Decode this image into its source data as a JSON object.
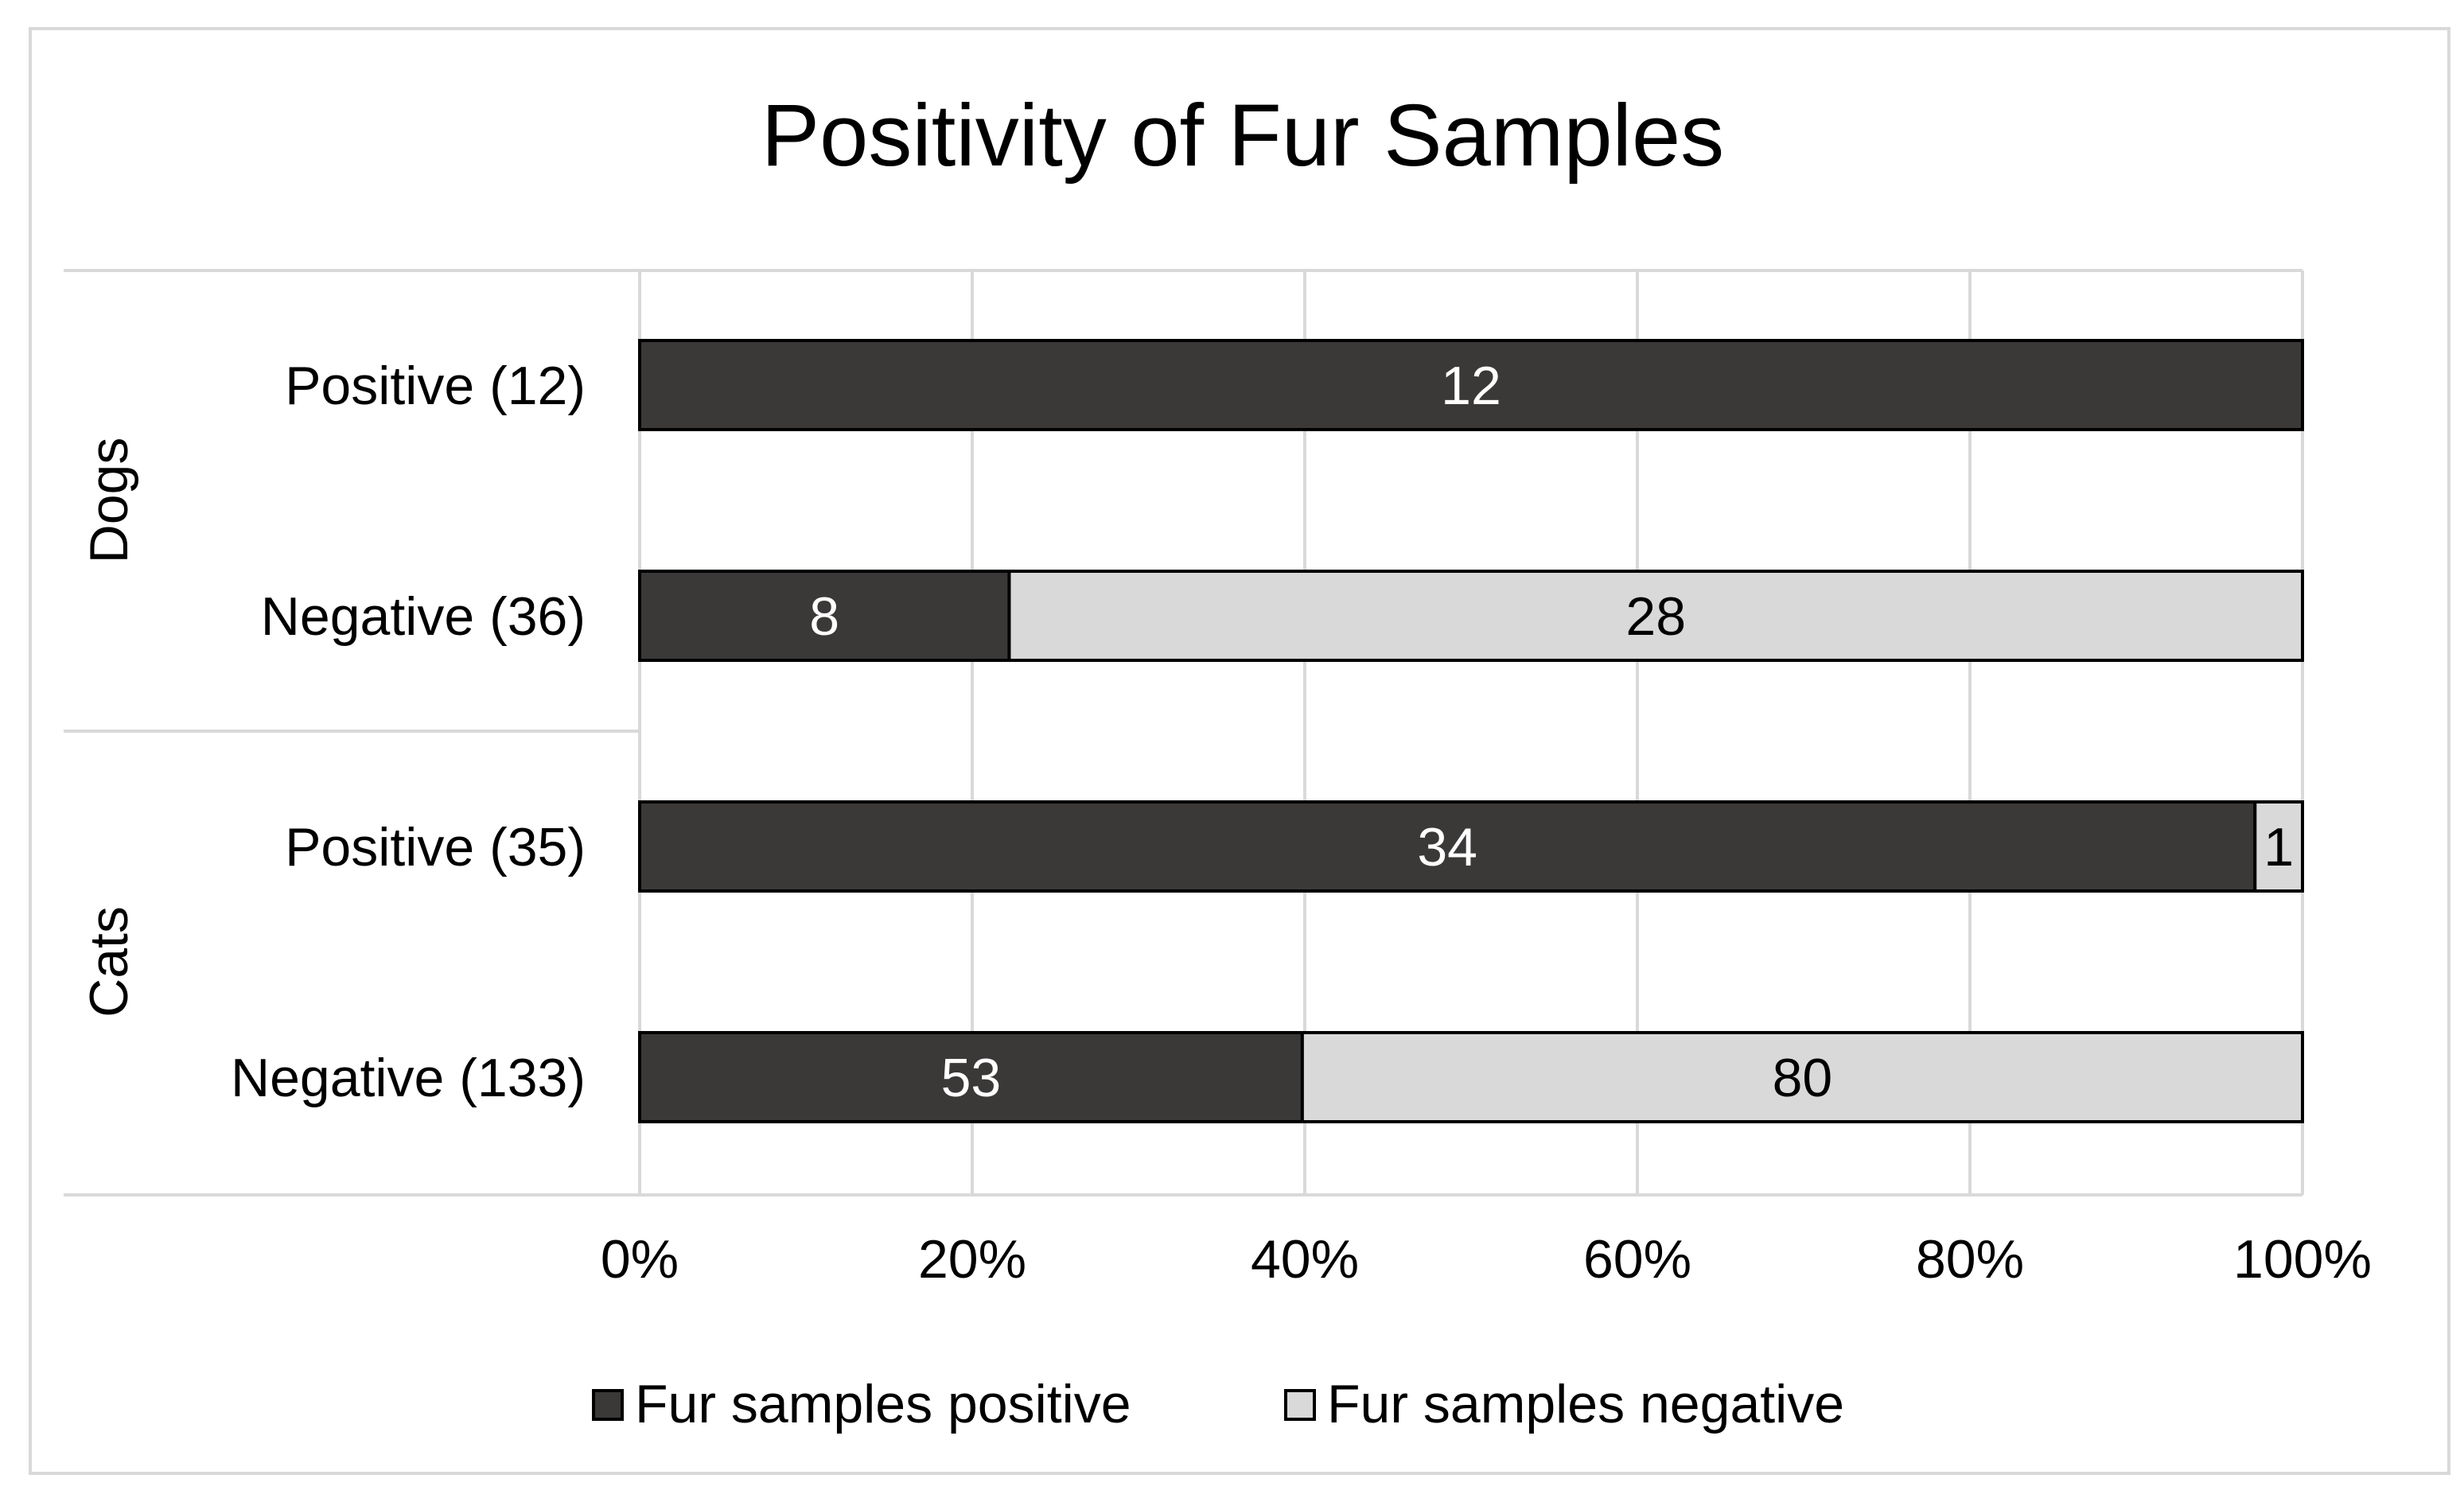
{
  "chart_data": {
    "type": "bar",
    "orientation": "horizontal",
    "stacked": "percent",
    "title": "Positivity of Fur Samples",
    "groups": [
      {
        "name": "Dogs",
        "categories": [
          "Positive (12)",
          "Negative (36)"
        ]
      },
      {
        "name": "Cats",
        "categories": [
          "Positive (35)",
          "Negative (133)"
        ]
      }
    ],
    "categories": [
      "Positive (12)",
      "Negative (36)",
      "Positive (35)",
      "Negative (133)"
    ],
    "series": [
      {
        "name": "Fur samples positive",
        "values": [
          12,
          8,
          34,
          53
        ],
        "labels": [
          "12",
          "8",
          "34",
          "53"
        ],
        "color": "#3b3838"
      },
      {
        "name": "Fur samples negative",
        "values": [
          0,
          28,
          1,
          80
        ],
        "labels": [
          "",
          "28",
          "1",
          "80"
        ],
        "color": "#d9d9d9"
      }
    ],
    "x_ticks": [
      "0%",
      "20%",
      "40%",
      "60%",
      "80%",
      "100%"
    ],
    "xlim": [
      0,
      100
    ],
    "grid": true,
    "legend_position": "bottom"
  },
  "colors": {
    "dark_bar": "#3b3838",
    "light_bar": "#d9d9d9",
    "gridline": "#d9d9d9",
    "bar_edge": "#000000"
  }
}
